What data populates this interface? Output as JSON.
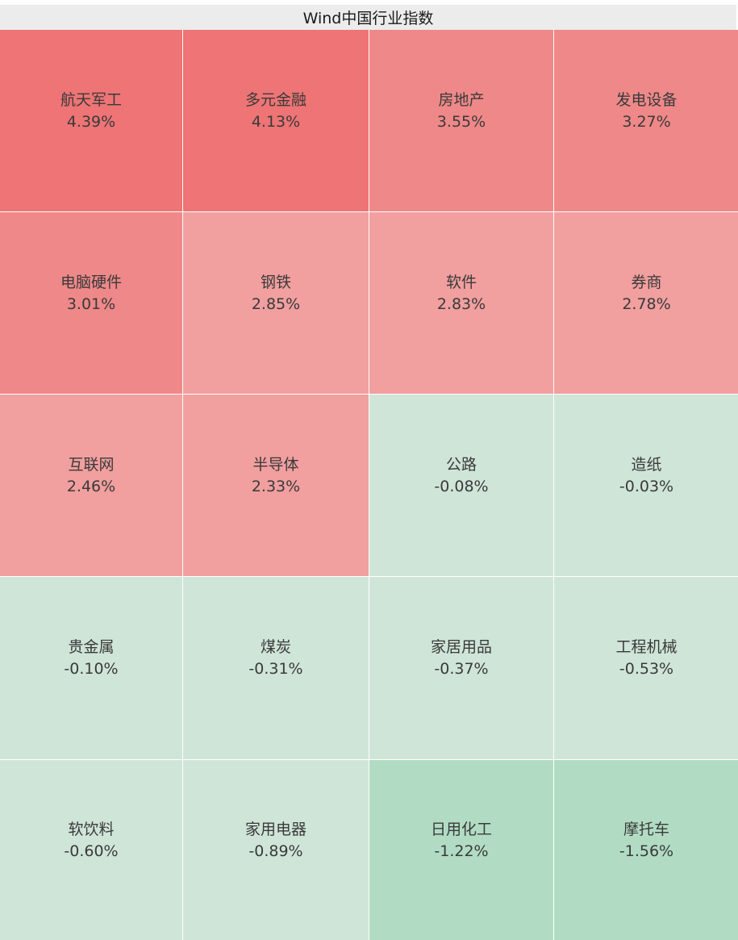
{
  "title": "Wind中国行业指数",
  "colors": {
    "up_strong": "#ee7475",
    "up_medium": "#ef8888",
    "up_light": "#f19f9f",
    "down_light": "#cfe5d8",
    "down_medium": "#b1dcc3"
  },
  "cells": [
    {
      "name": "航天军工",
      "change": "4.39%",
      "level": "up_strong"
    },
    {
      "name": "多元金融",
      "change": "4.13%",
      "level": "up_strong"
    },
    {
      "name": "房地产",
      "change": "3.55%",
      "level": "up_medium"
    },
    {
      "name": "发电设备",
      "change": "3.27%",
      "level": "up_medium"
    },
    {
      "name": "电脑硬件",
      "change": "3.01%",
      "level": "up_medium"
    },
    {
      "name": "钢铁",
      "change": "2.85%",
      "level": "up_light"
    },
    {
      "name": "软件",
      "change": "2.83%",
      "level": "up_light"
    },
    {
      "name": "券商",
      "change": "2.78%",
      "level": "up_light"
    },
    {
      "name": "互联网",
      "change": "2.46%",
      "level": "up_light"
    },
    {
      "name": "半导体",
      "change": "2.33%",
      "level": "up_light"
    },
    {
      "name": "公路",
      "change": "-0.08%",
      "level": "down_light"
    },
    {
      "name": "造纸",
      "change": "-0.03%",
      "level": "down_light"
    },
    {
      "name": "贵金属",
      "change": "-0.10%",
      "level": "down_light"
    },
    {
      "name": "煤炭",
      "change": "-0.31%",
      "level": "down_light"
    },
    {
      "name": "家居用品",
      "change": "-0.37%",
      "level": "down_light"
    },
    {
      "name": "工程机械",
      "change": "-0.53%",
      "level": "down_light"
    },
    {
      "name": "软饮料",
      "change": "-0.60%",
      "level": "down_light"
    },
    {
      "name": "家用电器",
      "change": "-0.89%",
      "level": "down_light"
    },
    {
      "name": "日用化工",
      "change": "-1.22%",
      "level": "down_medium"
    },
    {
      "name": "摩托车",
      "change": "-1.56%",
      "level": "down_medium"
    }
  ]
}
